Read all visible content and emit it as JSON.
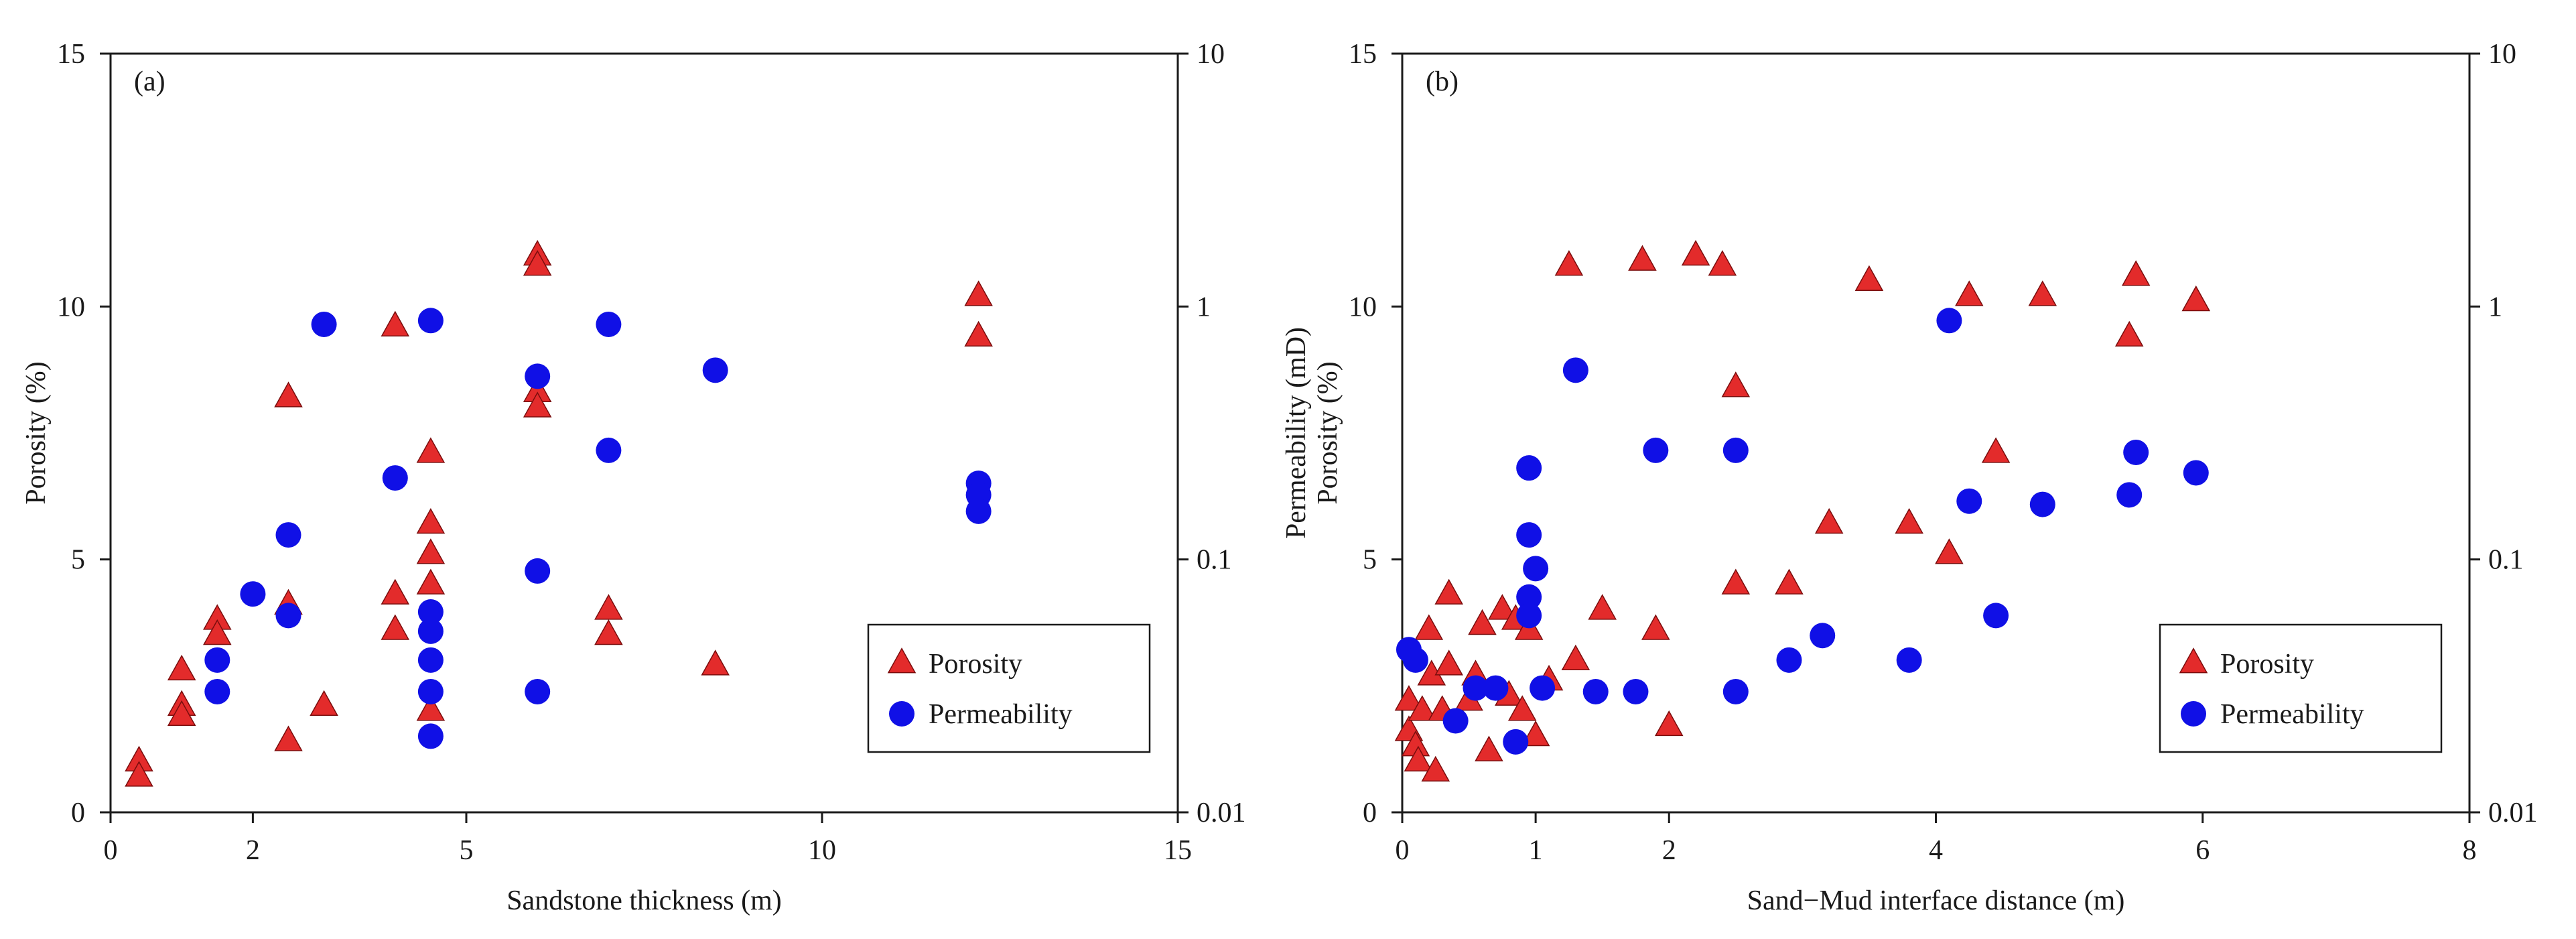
{
  "chart_data": [
    {
      "type": "scatter",
      "panel_label": "(a)",
      "xlabel": "Sandstone thickness (m)",
      "ylabel": "Porosity (%)",
      "y2label": "Permeability (mD)",
      "xlim": [
        0,
        15
      ],
      "xticks": [
        "0",
        "2",
        "5",
        "10",
        "15"
      ],
      "ylim": [
        0,
        15
      ],
      "yticks": [
        "0",
        "5",
        "10",
        "15"
      ],
      "y2scale": "log",
      "y2lim": [
        0.01,
        10
      ],
      "y2ticks": [
        "0.01",
        "0.1",
        "1",
        "10"
      ],
      "legend_position": "bottom-right",
      "legend": [
        "Porosity",
        "Permeability"
      ],
      "colors": {
        "porosity": "#e32b2b",
        "permeability": "#1010e6"
      },
      "series": [
        {
          "name": "Porosity",
          "marker": "triangle",
          "axis": "left",
          "points": [
            [
              0.4,
              1.0
            ],
            [
              0.4,
              0.7
            ],
            [
              1.0,
              2.8
            ],
            [
              1.0,
              2.1
            ],
            [
              1.0,
              1.9
            ],
            [
              1.5,
              3.8
            ],
            [
              1.5,
              3.5
            ],
            [
              2.5,
              8.2
            ],
            [
              2.5,
              4.1
            ],
            [
              2.5,
              1.4
            ],
            [
              3.0,
              2.1
            ],
            [
              4.0,
              9.6
            ],
            [
              4.0,
              4.3
            ],
            [
              4.0,
              3.6
            ],
            [
              4.5,
              7.1
            ],
            [
              4.5,
              5.7
            ],
            [
              4.5,
              5.1
            ],
            [
              4.5,
              4.5
            ],
            [
              4.5,
              2.0
            ],
            [
              6.0,
              11.0
            ],
            [
              6.0,
              10.8
            ],
            [
              6.0,
              8.3
            ],
            [
              6.0,
              8.0
            ],
            [
              7.0,
              4.0
            ],
            [
              7.0,
              3.5
            ],
            [
              8.5,
              2.9
            ],
            [
              12.2,
              10.2
            ],
            [
              12.2,
              9.4
            ]
          ]
        },
        {
          "name": "Permeability",
          "marker": "circle",
          "axis": "right",
          "points": [
            [
              1.5,
              0.04
            ],
            [
              1.5,
              0.03
            ],
            [
              2.0,
              0.073
            ],
            [
              2.5,
              0.125
            ],
            [
              2.5,
              0.06
            ],
            [
              3.0,
              0.85
            ],
            [
              4.0,
              0.21
            ],
            [
              4.5,
              0.88
            ],
            [
              4.5,
              0.062
            ],
            [
              4.5,
              0.052
            ],
            [
              4.5,
              0.04
            ],
            [
              4.5,
              0.03
            ],
            [
              4.5,
              0.02
            ],
            [
              6.0,
              0.53
            ],
            [
              6.0,
              0.09
            ],
            [
              6.0,
              0.03
            ],
            [
              7.0,
              0.85
            ],
            [
              7.0,
              0.27
            ],
            [
              8.5,
              0.56
            ],
            [
              12.2,
              0.2
            ],
            [
              12.2,
              0.18
            ],
            [
              12.2,
              0.155
            ]
          ]
        }
      ]
    },
    {
      "type": "scatter",
      "panel_label": "(b)",
      "xlabel": "Sand−Mud interface distance (m)",
      "ylabel": "Porosity (%)",
      "y2label": "Permeability (mD)",
      "xlim": [
        0,
        8
      ],
      "xticks": [
        "0",
        "2",
        "4",
        "6",
        "8"
      ],
      "ylim": [
        0,
        15
      ],
      "yticks": [
        "0",
        "5",
        "10",
        "15"
      ],
      "y2scale": "log",
      "y2lim": [
        0.01,
        10
      ],
      "y2ticks": [
        "0.01",
        "0.1",
        "1",
        "10"
      ],
      "extra_tick": {
        "at": 1,
        "label": "1"
      },
      "legend_position": "bottom-right",
      "legend": [
        "Porosity",
        "Permeability"
      ],
      "colors": {
        "porosity": "#e32b2b",
        "permeability": "#1010e6"
      },
      "series": [
        {
          "name": "Porosity",
          "marker": "triangle",
          "axis": "left",
          "points": [
            [
              0.05,
              2.2
            ],
            [
              0.05,
              1.6
            ],
            [
              0.1,
              1.3
            ],
            [
              0.12,
              1.0
            ],
            [
              0.15,
              2.0
            ],
            [
              0.2,
              3.6
            ],
            [
              0.22,
              2.7
            ],
            [
              0.25,
              0.8
            ],
            [
              0.3,
              2.0
            ],
            [
              0.35,
              4.3
            ],
            [
              0.35,
              2.9
            ],
            [
              0.5,
              2.2
            ],
            [
              0.55,
              2.7
            ],
            [
              0.6,
              3.7
            ],
            [
              0.65,
              1.2
            ],
            [
              0.75,
              4.0
            ],
            [
              0.8,
              2.3
            ],
            [
              0.85,
              3.8
            ],
            [
              0.9,
              2.0
            ],
            [
              0.95,
              3.6
            ],
            [
              1.0,
              1.5
            ],
            [
              1.1,
              2.6
            ],
            [
              1.25,
              10.8
            ],
            [
              1.3,
              3.0
            ],
            [
              1.5,
              4.0
            ],
            [
              1.8,
              10.9
            ],
            [
              1.9,
              3.6
            ],
            [
              2.0,
              1.7
            ],
            [
              2.2,
              11.0
            ],
            [
              2.4,
              10.8
            ],
            [
              2.5,
              8.4
            ],
            [
              2.5,
              4.5
            ],
            [
              2.9,
              4.5
            ],
            [
              3.2,
              5.7
            ],
            [
              3.5,
              10.5
            ],
            [
              3.8,
              5.7
            ],
            [
              4.1,
              5.1
            ],
            [
              4.25,
              10.2
            ],
            [
              4.45,
              7.1
            ],
            [
              4.8,
              10.2
            ],
            [
              5.45,
              9.4
            ],
            [
              5.5,
              10.6
            ],
            [
              5.95,
              10.1
            ]
          ]
        },
        {
          "name": "Permeability",
          "marker": "circle",
          "axis": "right",
          "points": [
            [
              0.05,
              0.044
            ],
            [
              0.1,
              0.04
            ],
            [
              0.4,
              0.023
            ],
            [
              0.55,
              0.031
            ],
            [
              0.7,
              0.031
            ],
            [
              0.85,
              0.019
            ],
            [
              0.95,
              0.23
            ],
            [
              0.95,
              0.125
            ],
            [
              0.95,
              0.071
            ],
            [
              0.95,
              0.06
            ],
            [
              1.0,
              0.092
            ],
            [
              1.05,
              0.031
            ],
            [
              1.3,
              0.56
            ],
            [
              1.45,
              0.03
            ],
            [
              1.75,
              0.03
            ],
            [
              1.9,
              0.27
            ],
            [
              2.5,
              0.27
            ],
            [
              2.5,
              0.03
            ],
            [
              2.9,
              0.04
            ],
            [
              3.15,
              0.05
            ],
            [
              3.8,
              0.04
            ],
            [
              4.1,
              0.88
            ],
            [
              4.25,
              0.17
            ],
            [
              4.45,
              0.06
            ],
            [
              4.8,
              0.165
            ],
            [
              5.45,
              0.18
            ],
            [
              5.5,
              0.265
            ],
            [
              5.95,
              0.22
            ]
          ]
        }
      ]
    }
  ]
}
